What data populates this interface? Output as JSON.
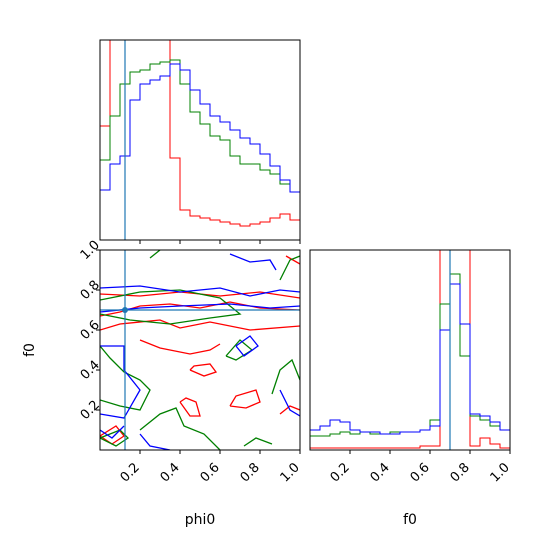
{
  "colors": {
    "red": "#ff0000",
    "green": "#008000",
    "blue": "#0000ff",
    "truth": "#1f77b4",
    "axes": "#000000"
  },
  "chart_data": [
    {
      "type": "histogram",
      "panel": "phi0-marginal",
      "xlim": [
        0,
        1
      ],
      "x_edges": [
        0,
        0.05,
        0.1,
        0.15,
        0.2,
        0.25,
        0.3,
        0.35,
        0.4,
        0.45,
        0.5,
        0.55,
        0.6,
        0.65,
        0.7,
        0.75,
        0.8,
        0.85,
        0.9,
        0.95,
        1.0
      ],
      "series": [
        {
          "color": "red",
          "values": [
            0.57,
            1.0,
            1.0,
            1.0,
            1.0,
            1.0,
            1.0,
            0.41,
            0.15,
            0.12,
            0.11,
            0.1,
            0.09,
            0.08,
            0.07,
            0.08,
            0.09,
            0.11,
            0.13,
            0.1
          ]
        },
        {
          "color": "green",
          "values": [
            0.4,
            0.62,
            0.78,
            0.84,
            0.85,
            0.88,
            0.89,
            0.9,
            0.78,
            0.64,
            0.58,
            0.52,
            0.5,
            0.42,
            0.38,
            0.38,
            0.35,
            0.33,
            0.28,
            0.24
          ]
        },
        {
          "color": "blue",
          "values": [
            0.25,
            0.38,
            0.42,
            0.7,
            0.78,
            0.8,
            0.82,
            0.88,
            0.85,
            0.75,
            0.68,
            0.62,
            0.59,
            0.55,
            0.51,
            0.48,
            0.43,
            0.37,
            0.3,
            0.24
          ]
        }
      ],
      "truth_x": 0.125
    },
    {
      "type": "contour",
      "panel": "phi0-vs-f0",
      "xlabel": "phi0",
      "ylabel": "f0",
      "xlim": [
        0,
        1
      ],
      "ylim": [
        0,
        1
      ],
      "xticks": [
        "0.2",
        "0.4",
        "0.6",
        "0.8",
        "1.0"
      ],
      "yticks": [
        "0.2",
        "0.4",
        "0.6",
        "0.8",
        "1.0"
      ],
      "truth": {
        "x": 0.125,
        "y": 0.7
      },
      "contours": [
        {
          "color": "red",
          "points": [
            [
              0.0,
              0.67
            ],
            [
              0.1,
              0.69
            ],
            [
              0.2,
              0.72
            ],
            [
              0.35,
              0.73
            ],
            [
              0.5,
              0.71
            ],
            [
              0.65,
              0.74
            ],
            [
              0.8,
              0.71
            ],
            [
              1.0,
              0.7
            ]
          ]
        },
        {
          "color": "red",
          "points": [
            [
              0.0,
              0.6
            ],
            [
              0.1,
              0.63
            ],
            [
              0.3,
              0.65
            ],
            [
              0.4,
              0.61
            ],
            [
              0.55,
              0.64
            ],
            [
              0.75,
              0.6
            ],
            [
              1.0,
              0.62
            ]
          ]
        },
        {
          "color": "red",
          "points": [
            [
              0.0,
              0.78
            ],
            [
              0.2,
              0.77
            ],
            [
              0.4,
              0.79
            ],
            [
              0.6,
              0.77
            ],
            [
              0.8,
              0.79
            ],
            [
              1.0,
              0.76
            ]
          ]
        },
        {
          "color": "red",
          "points": [
            [
              0.2,
              0.55
            ],
            [
              0.3,
              0.51
            ],
            [
              0.45,
              0.48
            ],
            [
              0.55,
              0.5
            ],
            [
              0.6,
              0.53
            ]
          ]
        },
        {
          "color": "red",
          "points": [
            [
              0.45,
              0.4
            ],
            [
              0.52,
              0.37
            ],
            [
              0.58,
              0.39
            ],
            [
              0.55,
              0.43
            ],
            [
              0.47,
              0.42
            ],
            [
              0.45,
              0.4
            ]
          ]
        },
        {
          "color": "red",
          "points": [
            [
              0.4,
              0.24
            ],
            [
              0.45,
              0.17
            ],
            [
              0.5,
              0.17
            ],
            [
              0.48,
              0.24
            ],
            [
              0.43,
              0.26
            ],
            [
              0.4,
              0.24
            ]
          ]
        },
        {
          "color": "red",
          "points": [
            [
              0.65,
              0.22
            ],
            [
              0.68,
              0.27
            ],
            [
              0.78,
              0.3
            ],
            [
              0.8,
              0.24
            ],
            [
              0.73,
              0.21
            ],
            [
              0.65,
              0.22
            ]
          ]
        },
        {
          "color": "red",
          "points": [
            [
              0.9,
              0.18
            ],
            [
              0.95,
              0.22
            ],
            [
              1.0,
              0.2
            ]
          ]
        },
        {
          "color": "red",
          "points": [
            [
              0.0,
              0.07
            ],
            [
              0.06,
              0.03
            ],
            [
              0.12,
              0.07
            ],
            [
              0.08,
              0.12
            ],
            [
              0.0,
              0.07
            ]
          ]
        },
        {
          "color": "red",
          "points": [
            [
              0.93,
              0.97
            ],
            [
              1.0,
              0.93
            ]
          ]
        },
        {
          "color": "green",
          "points": [
            [
              0.0,
              0.75
            ],
            [
              0.2,
              0.79
            ],
            [
              0.4,
              0.8
            ],
            [
              0.6,
              0.76
            ],
            [
              0.7,
              0.68
            ],
            [
              0.55,
              0.66
            ],
            [
              0.35,
              0.63
            ],
            [
              0.15,
              0.65
            ],
            [
              0.0,
              0.68
            ]
          ]
        },
        {
          "color": "green",
          "points": [
            [
              0.0,
              0.52
            ],
            [
              0.05,
              0.46
            ],
            [
              0.12,
              0.39
            ],
            [
              0.2,
              0.35
            ],
            [
              0.25,
              0.3
            ],
            [
              0.2,
              0.2
            ],
            [
              0.1,
              0.22
            ],
            [
              0.0,
              0.25
            ]
          ]
        },
        {
          "color": "green",
          "points": [
            [
              0.2,
              0.1
            ],
            [
              0.3,
              0.18
            ],
            [
              0.38,
              0.21
            ],
            [
              0.42,
              0.12
            ],
            [
              0.52,
              0.08
            ],
            [
              0.6,
              0.0
            ]
          ]
        },
        {
          "color": "green",
          "points": [
            [
              0.0,
              0.06
            ],
            [
              0.08,
              0.02
            ],
            [
              0.14,
              0.06
            ],
            [
              0.1,
              0.1
            ],
            [
              0.0,
              0.06
            ]
          ]
        },
        {
          "color": "green",
          "points": [
            [
              0.63,
              0.47
            ],
            [
              0.7,
              0.55
            ],
            [
              0.76,
              0.5
            ],
            [
              0.68,
              0.45
            ],
            [
              0.63,
              0.47
            ]
          ]
        },
        {
          "color": "green",
          "points": [
            [
              0.86,
              0.28
            ],
            [
              0.9,
              0.4
            ],
            [
              0.96,
              0.45
            ],
            [
              1.0,
              0.35
            ]
          ]
        },
        {
          "color": "green",
          "points": [
            [
              0.72,
              0.02
            ],
            [
              0.78,
              0.06
            ],
            [
              0.86,
              0.03
            ]
          ]
        },
        {
          "color": "green",
          "points": [
            [
              0.9,
              0.85
            ],
            [
              0.95,
              0.95
            ],
            [
              1.0,
              0.97
            ]
          ]
        },
        {
          "color": "green",
          "points": [
            [
              0.25,
              0.96
            ],
            [
              0.3,
              1.0
            ]
          ]
        },
        {
          "color": "blue",
          "points": [
            [
              0.0,
              0.81
            ],
            [
              0.2,
              0.82
            ],
            [
              0.4,
              0.79
            ],
            [
              0.6,
              0.81
            ],
            [
              0.75,
              0.77
            ],
            [
              0.9,
              0.8
            ],
            [
              1.0,
              0.79
            ]
          ]
        },
        {
          "color": "blue",
          "points": [
            [
              0.0,
              0.69
            ],
            [
              0.2,
              0.71
            ],
            [
              0.4,
              0.72
            ],
            [
              0.65,
              0.73
            ],
            [
              0.85,
              0.71
            ],
            [
              1.0,
              0.72
            ]
          ]
        },
        {
          "color": "blue",
          "points": [
            [
              0.0,
              0.52
            ],
            [
              0.12,
              0.52
            ],
            [
              0.12,
              0.4
            ],
            [
              0.2,
              0.3
            ],
            [
              0.12,
              0.16
            ],
            [
              0.0,
              0.18
            ]
          ]
        },
        {
          "color": "blue",
          "points": [
            [
              0.2,
              0.08
            ],
            [
              0.25,
              0.02
            ],
            [
              0.35,
              0.0
            ]
          ]
        },
        {
          "color": "blue",
          "points": [
            [
              0.68,
              0.52
            ],
            [
              0.75,
              0.57
            ],
            [
              0.79,
              0.52
            ],
            [
              0.72,
              0.47
            ],
            [
              0.68,
              0.52
            ]
          ]
        },
        {
          "color": "blue",
          "points": [
            [
              0.65,
              0.98
            ],
            [
              0.75,
              0.94
            ],
            [
              0.85,
              0.95
            ],
            [
              0.88,
              0.9
            ]
          ]
        },
        {
          "color": "blue",
          "points": [
            [
              0.9,
              0.3
            ],
            [
              0.95,
              0.2
            ],
            [
              1.0,
              0.17
            ]
          ]
        },
        {
          "color": "blue",
          "points": [
            [
              0.0,
              0.1
            ],
            [
              0.06,
              0.06
            ],
            [
              0.12,
              0.12
            ]
          ]
        }
      ]
    },
    {
      "type": "histogram",
      "panel": "f0-marginal",
      "xlabel": "f0",
      "xlim": [
        0,
        1
      ],
      "xticks": [
        "0.2",
        "0.4",
        "0.6",
        "0.8",
        "1.0"
      ],
      "x_edges": [
        0,
        0.05,
        0.1,
        0.15,
        0.2,
        0.25,
        0.3,
        0.35,
        0.4,
        0.45,
        0.5,
        0.55,
        0.6,
        0.65,
        0.7,
        0.75,
        0.8,
        0.85,
        0.9,
        0.95,
        1.0
      ],
      "series": [
        {
          "color": "red",
          "values": [
            0.01,
            0.01,
            0.01,
            0.01,
            0.01,
            0.01,
            0.01,
            0.01,
            0.01,
            0.01,
            0.01,
            0.02,
            0.02,
            1.0,
            1.0,
            1.0,
            0.02,
            0.06,
            0.03,
            0.01
          ]
        },
        {
          "color": "green",
          "values": [
            0.07,
            0.07,
            0.08,
            0.09,
            0.08,
            0.09,
            0.08,
            0.08,
            0.09,
            0.09,
            0.09,
            0.1,
            0.15,
            0.73,
            0.88,
            0.47,
            0.17,
            0.15,
            0.12,
            0.1
          ]
        },
        {
          "color": "blue",
          "values": [
            0.1,
            0.12,
            0.15,
            0.14,
            0.1,
            0.09,
            0.09,
            0.08,
            0.08,
            0.09,
            0.09,
            0.1,
            0.12,
            0.6,
            0.83,
            0.63,
            0.18,
            0.17,
            0.14,
            0.1
          ]
        }
      ],
      "truth_x": 0.7
    }
  ]
}
